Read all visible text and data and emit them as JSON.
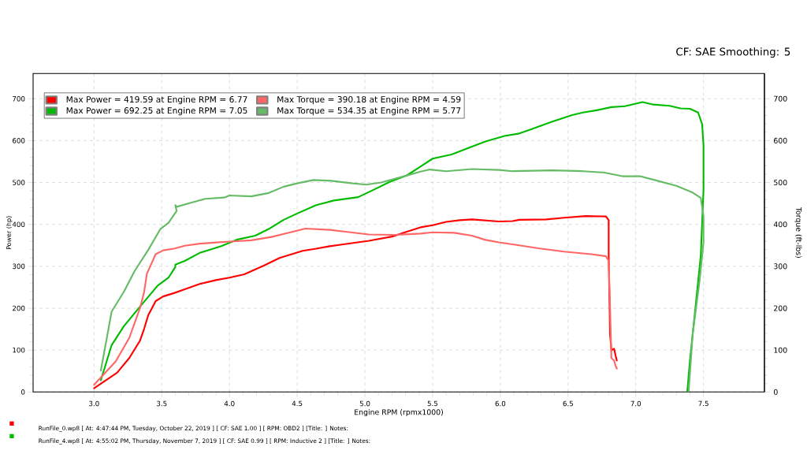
{
  "chart_data": {
    "type": "line",
    "xlabel": "Engine RPM (rpmx1000)",
    "ylabel": "Power (hp)",
    "y2label": "Torque (ft-lbs)",
    "annotations": [
      "CF: SAE Smoothing: 5",
      "RunFile_0.wp8 [ At: 4:47:44 PM, Tuesday, October 22, 2019 ] [ CF: SAE 1.00 ] [ RPM: OBD2 ] [Title: ]  Notes:",
      "RunFile_4.wp8 [ At: 4:55:02 PM, Thursday, November 7, 2019 ] [ CF: SAE 0.99 ] [ RPM: Inductive 2 ] [Title: ]  Notes:"
    ],
    "xlim": [
      2.55,
      7.95
    ],
    "ylim": [
      0,
      760
    ],
    "y2lim": [
      0,
      760
    ],
    "xticks": [
      {
        "value": 3,
        "label": "3.0"
      },
      3.5,
      {
        "value": 4,
        "label": "4.0"
      },
      4.5,
      {
        "value": 5,
        "label": "5.0"
      },
      5.5,
      {
        "value": 6,
        "label": "6.0"
      },
      6.5,
      {
        "value": 7,
        "label": "7.0"
      },
      7.5
    ],
    "yticks": [
      0,
      100,
      200,
      300,
      400,
      500,
      600,
      700
    ],
    "y2ticks": [
      0,
      100,
      200,
      300,
      400,
      500,
      600,
      700
    ],
    "grid": true,
    "legend": "top left",
    "line_style": "solid",
    "series": [
      {
        "name": "Max Power = 419.59 at Engine RPM = 6.77",
        "color": "#ff0000",
        "x": [
          3.0,
          3.17,
          3.26,
          3.34,
          3.37,
          3.4,
          3.455,
          3.51,
          3.59,
          3.67,
          3.78,
          3.9,
          4.0,
          4.11,
          4.25,
          4.37,
          4.54,
          4.64,
          4.74,
          4.83,
          5.03,
          5.2,
          5.41,
          5.5,
          5.6,
          5.7,
          5.79,
          5.99,
          6.09,
          6.14,
          6.34,
          6.47,
          6.63,
          6.78,
          6.8,
          6.8,
          6.81,
          6.82,
          6.84,
          6.85,
          6.86
        ],
        "values": [
          9,
          46,
          81,
          123,
          151,
          183,
          217,
          228,
          236,
          245,
          258,
          267,
          273,
          281,
          301,
          320,
          337,
          342,
          348,
          352,
          361,
          371,
          393,
          398,
          406,
          410,
          412,
          407,
          408,
          411,
          412,
          416,
          420,
          419,
          410,
          326,
          138,
          100,
          103,
          88,
          75
        ]
      },
      {
        "name": "Max Torque = 390.18 at Engine RPM = 4.59",
        "color": "#ff6666",
        "axis": "y2",
        "x": [
          3.0,
          3.16,
          3.26,
          3.34,
          3.37,
          3.39,
          3.455,
          3.51,
          3.59,
          3.67,
          3.78,
          3.9,
          4.0,
          4.16,
          4.31,
          4.45,
          4.56,
          4.74,
          4.87,
          5.03,
          5.22,
          5.41,
          5.5,
          5.66,
          5.79,
          5.89,
          5.99,
          6.12,
          6.28,
          6.47,
          6.67,
          6.78,
          6.8,
          6.81,
          6.82,
          6.84,
          6.85,
          6.86
        ],
        "values": [
          17,
          73,
          129,
          201,
          239,
          282,
          329,
          338,
          342,
          349,
          354,
          357,
          359,
          362,
          370,
          381,
          390,
          387,
          382,
          376,
          375,
          378,
          381,
          380,
          373,
          363,
          357,
          351,
          343,
          335,
          329,
          324,
          313,
          200,
          81,
          75,
          63,
          56
        ]
      },
      {
        "name": "Max Power = 692.25 at Engine RPM = 7.05",
        "color": "#00bb00",
        "x": [
          3.05,
          3.13,
          3.22,
          3.34,
          3.47,
          3.55,
          3.6,
          3.6,
          3.67,
          3.78,
          3.94,
          4.06,
          4.19,
          4.29,
          4.4,
          4.5,
          4.64,
          4.77,
          4.95,
          5.06,
          5.18,
          5.31,
          5.41,
          5.5,
          5.64,
          5.76,
          5.89,
          6.03,
          6.14,
          6.22,
          6.38,
          6.53,
          6.61,
          6.72,
          6.82,
          6.92,
          7.05,
          7.13,
          7.25,
          7.33,
          7.4,
          7.46,
          7.49,
          7.5,
          7.5,
          7.48,
          7.44,
          7.4,
          7.38
        ],
        "values": [
          28,
          112,
          157,
          204,
          254,
          273,
          298,
          304,
          313,
          332,
          348,
          364,
          373,
          389,
          411,
          426,
          446,
          457,
          465,
          482,
          501,
          517,
          538,
          557,
          567,
          582,
          598,
          611,
          617,
          626,
          645,
          661,
          667,
          673,
          680,
          682,
          692,
          686,
          683,
          677,
          676,
          667,
          639,
          589,
          482,
          326,
          200,
          75,
          0
        ]
      },
      {
        "name": "Max Torque = 534.35 at Engine RPM = 5.77",
        "color": "#66bb66",
        "axis": "y2",
        "x": [
          3.05,
          3.13,
          3.22,
          3.3,
          3.4,
          3.49,
          3.55,
          3.61,
          3.6,
          3.61,
          3.71,
          3.82,
          3.96,
          4.0,
          4.16,
          4.29,
          4.4,
          4.5,
          4.62,
          4.75,
          4.91,
          5.01,
          5.12,
          5.28,
          5.41,
          5.48,
          5.6,
          5.79,
          5.99,
          6.09,
          6.38,
          6.61,
          6.76,
          6.9,
          7.03,
          7.15,
          7.3,
          7.42,
          7.48,
          7.5,
          7.5,
          7.47,
          7.42,
          7.39
        ],
        "values": [
          51,
          192,
          239,
          289,
          339,
          389,
          404,
          432,
          446,
          442,
          451,
          461,
          464,
          469,
          467,
          475,
          490,
          498,
          506,
          504,
          498,
          495,
          500,
          514,
          526,
          531,
          527,
          532,
          530,
          527,
          529,
          527,
          524,
          515,
          515,
          505,
          492,
          476,
          463,
          420,
          357,
          263,
          138,
          0
        ]
      }
    ]
  }
}
